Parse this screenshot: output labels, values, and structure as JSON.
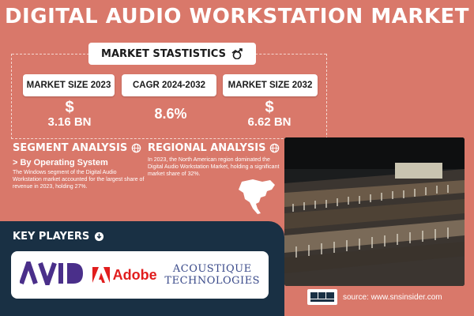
{
  "title": "DIGITAL AUDIO WORKSTATION MARKET",
  "market_statistics": {
    "heading": "MARKET STASTISTICS",
    "items": [
      {
        "label": "MARKET SIZE 2023",
        "symbol": "$",
        "value": "3.16 BN"
      },
      {
        "label": "CAGR 2024-2032",
        "symbol": "",
        "value": "8.6%"
      },
      {
        "label": "MARKET SIZE 2032",
        "symbol": "$",
        "value": "6.62 BN"
      }
    ]
  },
  "segment_analysis": {
    "heading": "SEGMENT ANALYSIS",
    "subheading": "> By Operating System",
    "text": "The Windows segment of the Digital Audio Workstation market accounted for the largest share of revenue in 2023, holding 27%."
  },
  "regional_analysis": {
    "heading": "REGIONAL ANALYSIS",
    "text": "In 2023, the North American region dominated the Digital Audio Workstation Market, holding a significant market share of 32%."
  },
  "key_players": {
    "heading": "KEY PLAYERS",
    "logos": {
      "avid": "AVID",
      "adobe": "Adobe",
      "acoustique_line1": "ACOUSTIQUE",
      "acoustique_line2": "TECHNOLOGIES"
    }
  },
  "source": "source: www.snsinsider.com",
  "colors": {
    "background": "#d9786a",
    "panel": "#193044",
    "accent_purple": "#4a2f8a",
    "adobe_red": "#e11d1d"
  }
}
